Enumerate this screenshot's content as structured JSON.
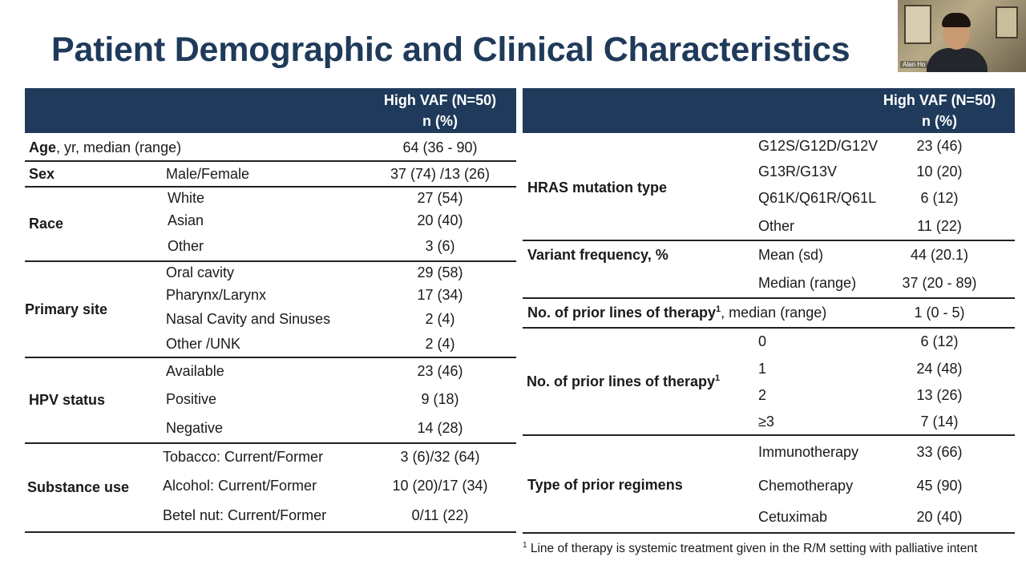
{
  "title": "Patient Demographic and Clinical Characteristics",
  "video": {
    "name": "Alan Ho"
  },
  "left_table": {
    "header_line1": "High VAF (N=50)",
    "header_line2": "n (%)",
    "age": {
      "label_bold": "Age",
      "label_rest": ", yr, median (range)",
      "value": "64 (36 - 90)"
    },
    "sex": {
      "label": "Sex",
      "sub": "Male/Female",
      "value": "37 (74) /13 (26)"
    },
    "race": {
      "label": "Race",
      "rows": [
        {
          "sub": "White",
          "value": "27 (54)"
        },
        {
          "sub": "Asian",
          "value": "20 (40)"
        },
        {
          "sub": "Other",
          "value": "3 (6)"
        }
      ]
    },
    "primary_site": {
      "label": "Primary site",
      "rows": [
        {
          "sub": "Oral cavity",
          "value": "29 (58)"
        },
        {
          "sub": "Pharynx/Larynx",
          "value": "17 (34)"
        },
        {
          "sub": "Nasal Cavity and Sinuses",
          "value": "2 (4)"
        },
        {
          "sub": "Other /UNK",
          "value": "2 (4)"
        }
      ]
    },
    "hpv": {
      "label": "HPV status",
      "rows": [
        {
          "sub": "Available",
          "value": "23 (46)"
        },
        {
          "sub": "Positive",
          "value": "9 (18)"
        },
        {
          "sub": "Negative",
          "value": "14 (28)"
        }
      ]
    },
    "substance": {
      "label": "Substance use",
      "rows": [
        {
          "sub": "Tobacco: Current/Former",
          "value": "3 (6)/32 (64)"
        },
        {
          "sub": "Alcohol: Current/Former",
          "value": "10 (20)/17 (34)"
        },
        {
          "sub": "Betel nut: Current/Former",
          "value": "0/11 (22)"
        }
      ]
    }
  },
  "right_table": {
    "header_line1": "High VAF (N=50)",
    "header_line2": "n (%)",
    "hras": {
      "label": "HRAS mutation type",
      "rows": [
        {
          "sub": "G12S/G12D/G12V",
          "value": "23 (46)"
        },
        {
          "sub": "G13R/G13V",
          "value": "10 (20)"
        },
        {
          "sub": "Q61K/Q61R/Q61L",
          "value": "6 (12)"
        },
        {
          "sub": "Other",
          "value": "11 (22)"
        }
      ]
    },
    "vaf": {
      "label": "Variant frequency, %",
      "rows": [
        {
          "sub": "Mean (sd)",
          "value": "44 (20.1)"
        },
        {
          "sub": "Median (range)",
          "value": "37 (20 - 89)"
        }
      ]
    },
    "prior_median": {
      "label_bold": "No. of prior lines of therapy",
      "sup": "1",
      "label_rest": ", median (range)",
      "value": "1 (0 - 5)"
    },
    "prior_lines": {
      "label": "No. of prior lines of therapy",
      "sup": "1",
      "rows": [
        {
          "sub": "0",
          "value": "6 (12)"
        },
        {
          "sub": "1",
          "value": "24 (48)"
        },
        {
          "sub": "2",
          "value": "13 (26)"
        },
        {
          "sub": "≥3",
          "value": "7 (14)"
        }
      ]
    },
    "regimens": {
      "label": "Type of prior regimens",
      "rows": [
        {
          "sub": "Immunotherapy",
          "value": "33 (66)"
        },
        {
          "sub": "Chemotherapy",
          "value": "45 (90)"
        },
        {
          "sub": "Cetuximab",
          "value": "20 (40)"
        }
      ]
    }
  },
  "footnote": {
    "sup": "1",
    "text": " Line of therapy is systemic treatment given in the R/M setting with palliative intent"
  }
}
